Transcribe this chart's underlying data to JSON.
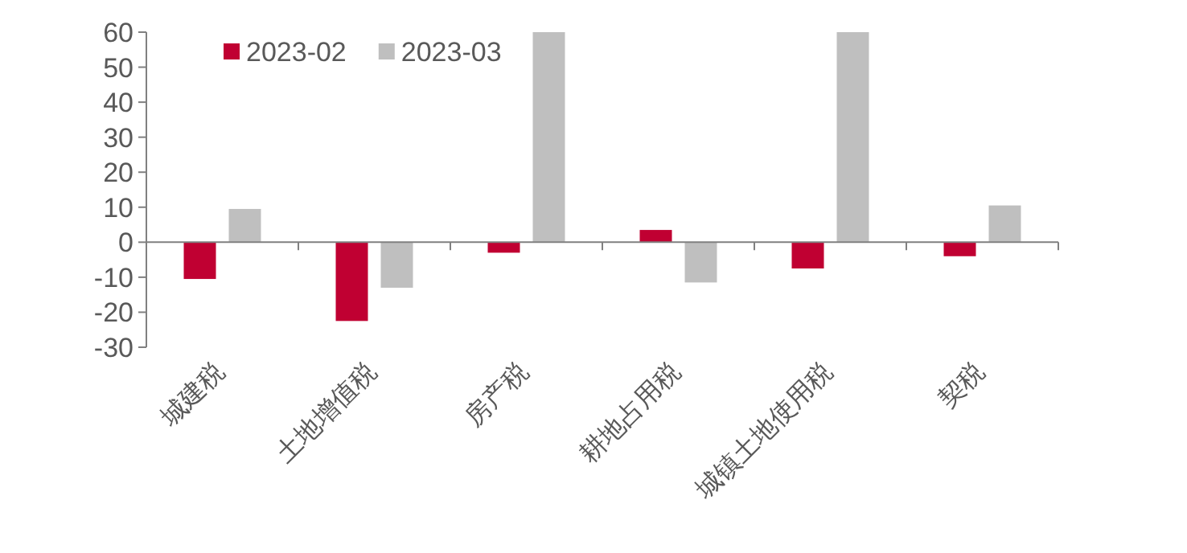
{
  "chart_data": {
    "type": "bar",
    "categories": [
      "城建税",
      "土地增值税",
      "房产税",
      "耕地占用税",
      "城镇土地使用税",
      "契税"
    ],
    "series": [
      {
        "name": "2023-02",
        "color": "#c00032",
        "values": [
          -10.5,
          -22.5,
          -3,
          3.5,
          -7.5,
          -4
        ]
      },
      {
        "name": "2023-03",
        "color": "#bfbfbf",
        "values": [
          9.5,
          -13,
          60,
          -11.5,
          60,
          10.5
        ]
      }
    ],
    "ylim": [
      -30,
      60
    ],
    "yticks": [
      -30,
      -20,
      -10,
      0,
      10,
      20,
      30,
      40,
      50,
      60
    ],
    "legend": "top left"
  }
}
